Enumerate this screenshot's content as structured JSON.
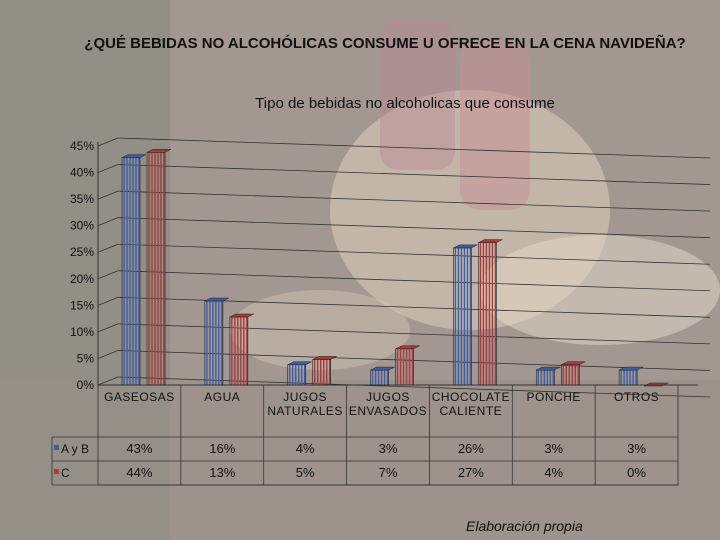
{
  "slide": {
    "title": "¿QUÉ BEBIDAS NO ALCOHÓLICAS CONSUME U OFRECE EN LA CENA NAVIDEÑA?",
    "caption": "Elaboración propia"
  },
  "chart_data": {
    "type": "bar",
    "title": "Tipo de bebidas no alcoholicas que consume",
    "categories": [
      "GASEOSAS",
      "AGUA",
      "JUGOS NATURALES",
      "JUGOS ENVASADOS",
      "CHOCOLATE CALIENTE",
      "PONCHE",
      "OTROS"
    ],
    "series": [
      {
        "name": "A y B",
        "values": [
          43,
          16,
          4,
          3,
          26,
          3,
          3
        ],
        "labels": [
          "43%",
          "16%",
          "4%",
          "3%",
          "26%",
          "3%",
          "3%"
        ],
        "color": "#3a5fa8"
      },
      {
        "name": "C",
        "values": [
          44,
          13,
          5,
          7,
          27,
          4,
          0
        ],
        "labels": [
          "44%",
          "13%",
          "5%",
          "7%",
          "27%",
          "4%",
          "0%"
        ],
        "color": "#a83a3a"
      }
    ],
    "yticks": [
      "0%",
      "5%",
      "10%",
      "15%",
      "20%",
      "25%",
      "30%",
      "35%",
      "40%",
      "45%"
    ],
    "ylim": [
      0,
      45
    ],
    "grid": true,
    "legend": "data-table"
  }
}
